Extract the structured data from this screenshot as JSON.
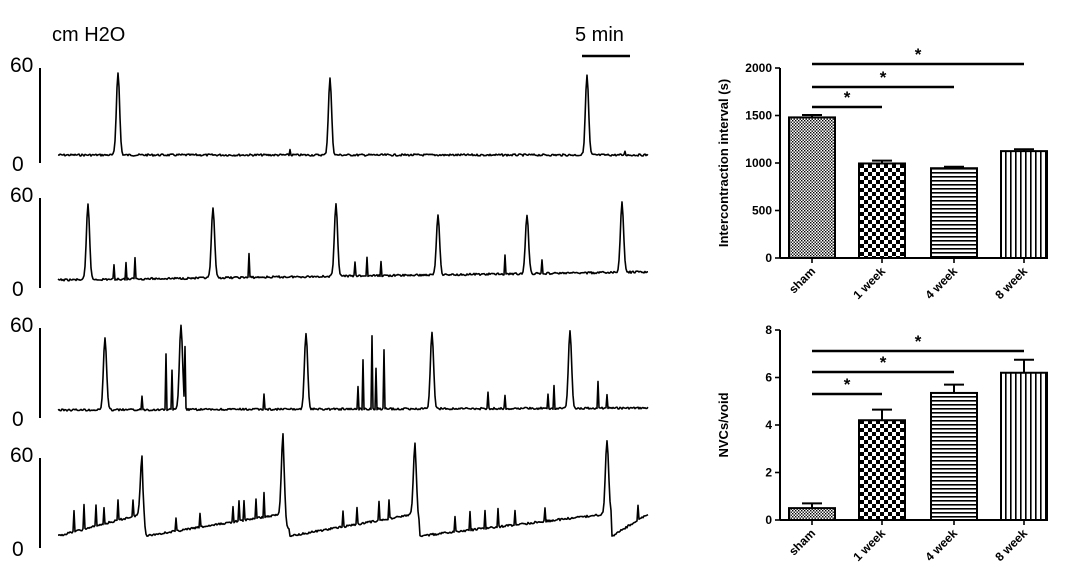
{
  "traces_panel": {
    "unit_label": "cm H2O",
    "scale_bar_label": "5 min",
    "y_tick_max": "60",
    "y_tick_min": "0"
  },
  "chart_data": [
    {
      "type": "bar",
      "categories": [
        "sham",
        "1 week",
        "4 week",
        "8 week"
      ],
      "values": [
        1480,
        995,
        945,
        1125
      ],
      "errors": [
        25,
        30,
        15,
        20
      ],
      "ylabel": "Intercontraction interval (s)",
      "xlabel": "",
      "ylim": [
        0,
        2000
      ],
      "yticks": [
        0,
        500,
        1000,
        1500,
        2000
      ],
      "grid": false,
      "significance": [
        {
          "from": "sham",
          "to": "1 week",
          "label": "*"
        },
        {
          "from": "sham",
          "to": "4 week",
          "label": "*"
        },
        {
          "from": "sham",
          "to": "8 week",
          "label": "*"
        }
      ],
      "patterns": [
        "dense-dots",
        "checker",
        "horizontal-lines",
        "vertical-lines"
      ]
    },
    {
      "type": "bar",
      "categories": [
        "sham",
        "1 week",
        "4 week",
        "8 week"
      ],
      "values": [
        0.5,
        4.2,
        5.35,
        6.2
      ],
      "errors": [
        0.2,
        0.45,
        0.35,
        0.55
      ],
      "ylabel": "NVCs/void",
      "xlabel": "",
      "ylim": [
        0,
        8
      ],
      "yticks": [
        0,
        2,
        4,
        6,
        8
      ],
      "grid": false,
      "significance": [
        {
          "from": "sham",
          "to": "1 week",
          "label": "*"
        },
        {
          "from": "sham",
          "to": "4 week",
          "label": "*"
        },
        {
          "from": "sham",
          "to": "8 week",
          "label": "*"
        }
      ],
      "patterns": [
        "dense-dots",
        "checker",
        "horizontal-lines",
        "vertical-lines"
      ]
    }
  ]
}
